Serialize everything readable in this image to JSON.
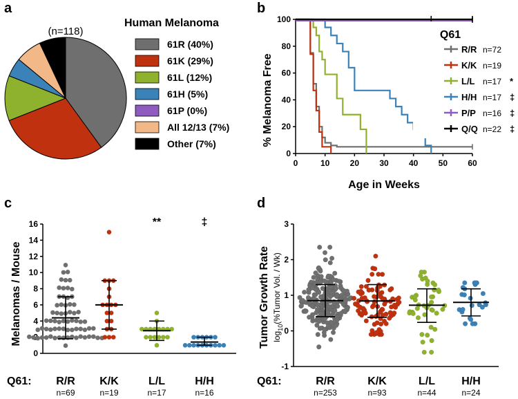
{
  "panel_labels": {
    "a": "a",
    "b": "b",
    "c": "c",
    "d": "d"
  },
  "chart_data": [
    {
      "id": "a",
      "type": "pie",
      "title": "Human Melanoma",
      "annotation": "(n=118)",
      "slices": [
        {
          "label": "61R (40%)",
          "value": 40,
          "color": "#6f6f6f"
        },
        {
          "label": "61K (29%)",
          "value": 29,
          "color": "#c0320f"
        },
        {
          "label": "61L (12%)",
          "value": 12,
          "color": "#8fb22e"
        },
        {
          "label": "61H (5%)",
          "value": 5,
          "color": "#3a82b8"
        },
        {
          "label": "61P (0%)",
          "value": 0,
          "color": "#8e5bbf"
        },
        {
          "label": "All 12/13 (7%)",
          "value": 7,
          "color": "#f2b887"
        },
        {
          "label": "Other (7%)",
          "value": 7,
          "color": "#000000"
        }
      ]
    },
    {
      "id": "b",
      "type": "line",
      "xlabel": "Age in Weeks",
      "ylabel": "% Melanoma Free",
      "xlim": [
        0,
        60
      ],
      "ylim": [
        0,
        100
      ],
      "xticks": [
        0,
        10,
        20,
        30,
        40,
        50,
        60
      ],
      "yticks": [
        0,
        20,
        40,
        60,
        80,
        100
      ],
      "legend_title": "Q61",
      "series": [
        {
          "name": "R/R",
          "n": "n=72",
          "mark": "",
          "color": "#6f6f6f",
          "x": [
            0,
            4,
            5,
            6,
            7,
            8,
            9,
            10,
            12,
            14,
            16,
            60
          ],
          "y": [
            100,
            99,
            75,
            52,
            35,
            20,
            12,
            8,
            6,
            5,
            5,
            5
          ]
        },
        {
          "name": "K/K",
          "n": "n=19",
          "mark": "",
          "color": "#c0320f",
          "x": [
            0,
            4,
            5,
            6,
            7,
            8,
            9,
            10,
            12
          ],
          "y": [
            100,
            100,
            74,
            47,
            32,
            16,
            5,
            5,
            0
          ]
        },
        {
          "name": "L/L",
          "n": "n=17",
          "mark": "*",
          "color": "#8fb22e",
          "x": [
            0,
            4,
            6,
            7,
            8,
            9,
            10,
            14,
            16,
            19,
            22,
            24
          ],
          "y": [
            100,
            100,
            94,
            88,
            76,
            70,
            59,
            41,
            29,
            29,
            18,
            0
          ]
        },
        {
          "name": "H/H",
          "n": "n=17",
          "mark": "‡",
          "color": "#3a82b8",
          "x": [
            0,
            4,
            8,
            10,
            12,
            14,
            16,
            18,
            20,
            30,
            32,
            34,
            36,
            38,
            40,
            42,
            44,
            46
          ],
          "y": [
            100,
            100,
            100,
            94,
            88,
            82,
            76,
            64,
            47,
            47,
            41,
            35,
            29,
            23,
            18,
            12,
            6,
            0
          ]
        },
        {
          "name": "P/P",
          "n": "n=16",
          "mark": "‡",
          "color": "#8e5bbf",
          "x": [
            0,
            60
          ],
          "y": [
            99,
            99
          ]
        },
        {
          "name": "Q/Q",
          "n": "n=22",
          "mark": "‡",
          "color": "#000000",
          "x": [
            0,
            60
          ],
          "y": [
            100,
            100
          ]
        }
      ]
    },
    {
      "id": "c",
      "type": "scatter",
      "xlabel_prefix": "Q61:",
      "ylabel": "Melanomas / Mouse",
      "ylim": [
        0,
        16
      ],
      "yticks": [
        0,
        2,
        4,
        6,
        8,
        10,
        12,
        14,
        16
      ],
      "groups": [
        {
          "name": "R/R",
          "n": "n=69",
          "mark": "",
          "color": "#6f6f6f",
          "mean": 4.4,
          "sd_low": 1.8,
          "sd_high": 7.0,
          "values": [
            2,
            2,
            2,
            2,
            2,
            2,
            2,
            2,
            2,
            2,
            2,
            2,
            2,
            2,
            2,
            2,
            2,
            2,
            3,
            3,
            3,
            3,
            3,
            3,
            3,
            3,
            3,
            3,
            3,
            3,
            3,
            4,
            4,
            4,
            4,
            4,
            4,
            4,
            4,
            4,
            5,
            5,
            5,
            5,
            5,
            5,
            5,
            6,
            6,
            6,
            6,
            6,
            7,
            7,
            7,
            7,
            8,
            8,
            8,
            8,
            9,
            9,
            9,
            10,
            10,
            11,
            3,
            4,
            1
          ]
        },
        {
          "name": "K/K",
          "n": "n=19",
          "mark": "",
          "color": "#c0320f",
          "mean": 6.0,
          "sd_low": 3.0,
          "sd_high": 9.0,
          "values": [
            15,
            9,
            9,
            9,
            8,
            7,
            6,
            6,
            6,
            6,
            5,
            5,
            4,
            4,
            3,
            3,
            2,
            2,
            2
          ]
        },
        {
          "name": "L/L",
          "n": "n=17",
          "mark": "**",
          "color": "#8fb22e",
          "mean": 2.8,
          "sd_low": 1.6,
          "sd_high": 4.0,
          "values": [
            5,
            4,
            3,
            3,
            3,
            3,
            3,
            3,
            3,
            3,
            2,
            2,
            2,
            2,
            2,
            2,
            1
          ]
        },
        {
          "name": "H/H",
          "n": "n=16",
          "mark": "‡",
          "color": "#3a82b8",
          "mean": 1.4,
          "sd_low": 1.0,
          "sd_high": 2.0,
          "values": [
            2,
            2,
            2,
            2,
            2,
            2,
            1,
            1,
            1,
            1,
            1,
            1,
            1,
            1,
            1,
            1
          ]
        }
      ]
    },
    {
      "id": "d",
      "type": "scatter",
      "xlabel_prefix": "Q61:",
      "ylabel": "Tumor Growth Rate",
      "ylabel2_pre": "log",
      "ylabel2_sub": "10",
      "ylabel2_post": "(%Tumor Vol. / Wk)",
      "ylim": [
        -1,
        3
      ],
      "yticks": [
        -1,
        0,
        1,
        2,
        3
      ],
      "groups": [
        {
          "name": "R/R",
          "n": "n=253",
          "mark": "",
          "color": "#6f6f6f",
          "count": 253,
          "mean": 0.85,
          "sd": 0.45,
          "min": -0.45,
          "max": 2.35,
          "mean_line": 0.85,
          "sd_low": 0.4,
          "sd_high": 1.3
        },
        {
          "name": "K/K",
          "n": "n=93",
          "mark": "",
          "color": "#c0320f",
          "count": 93,
          "mean": 0.84,
          "sd": 0.45,
          "min": -0.1,
          "max": 2.1,
          "mean_line": 0.84,
          "sd_low": 0.38,
          "sd_high": 1.3
        },
        {
          "name": "L/L",
          "n": "n=44",
          "mark": "",
          "color": "#8fb22e",
          "count": 44,
          "mean": 0.72,
          "sd": 0.47,
          "min": -0.6,
          "max": 1.65,
          "mean_line": 0.72,
          "sd_low": 0.24,
          "sd_high": 1.18
        },
        {
          "name": "H/H",
          "n": "n=24",
          "mark": "",
          "color": "#3a82b8",
          "count": 24,
          "mean": 0.8,
          "sd": 0.36,
          "min": 0.2,
          "max": 1.35,
          "mean_line": 0.8,
          "sd_low": 0.42,
          "sd_high": 1.18
        }
      ]
    }
  ]
}
